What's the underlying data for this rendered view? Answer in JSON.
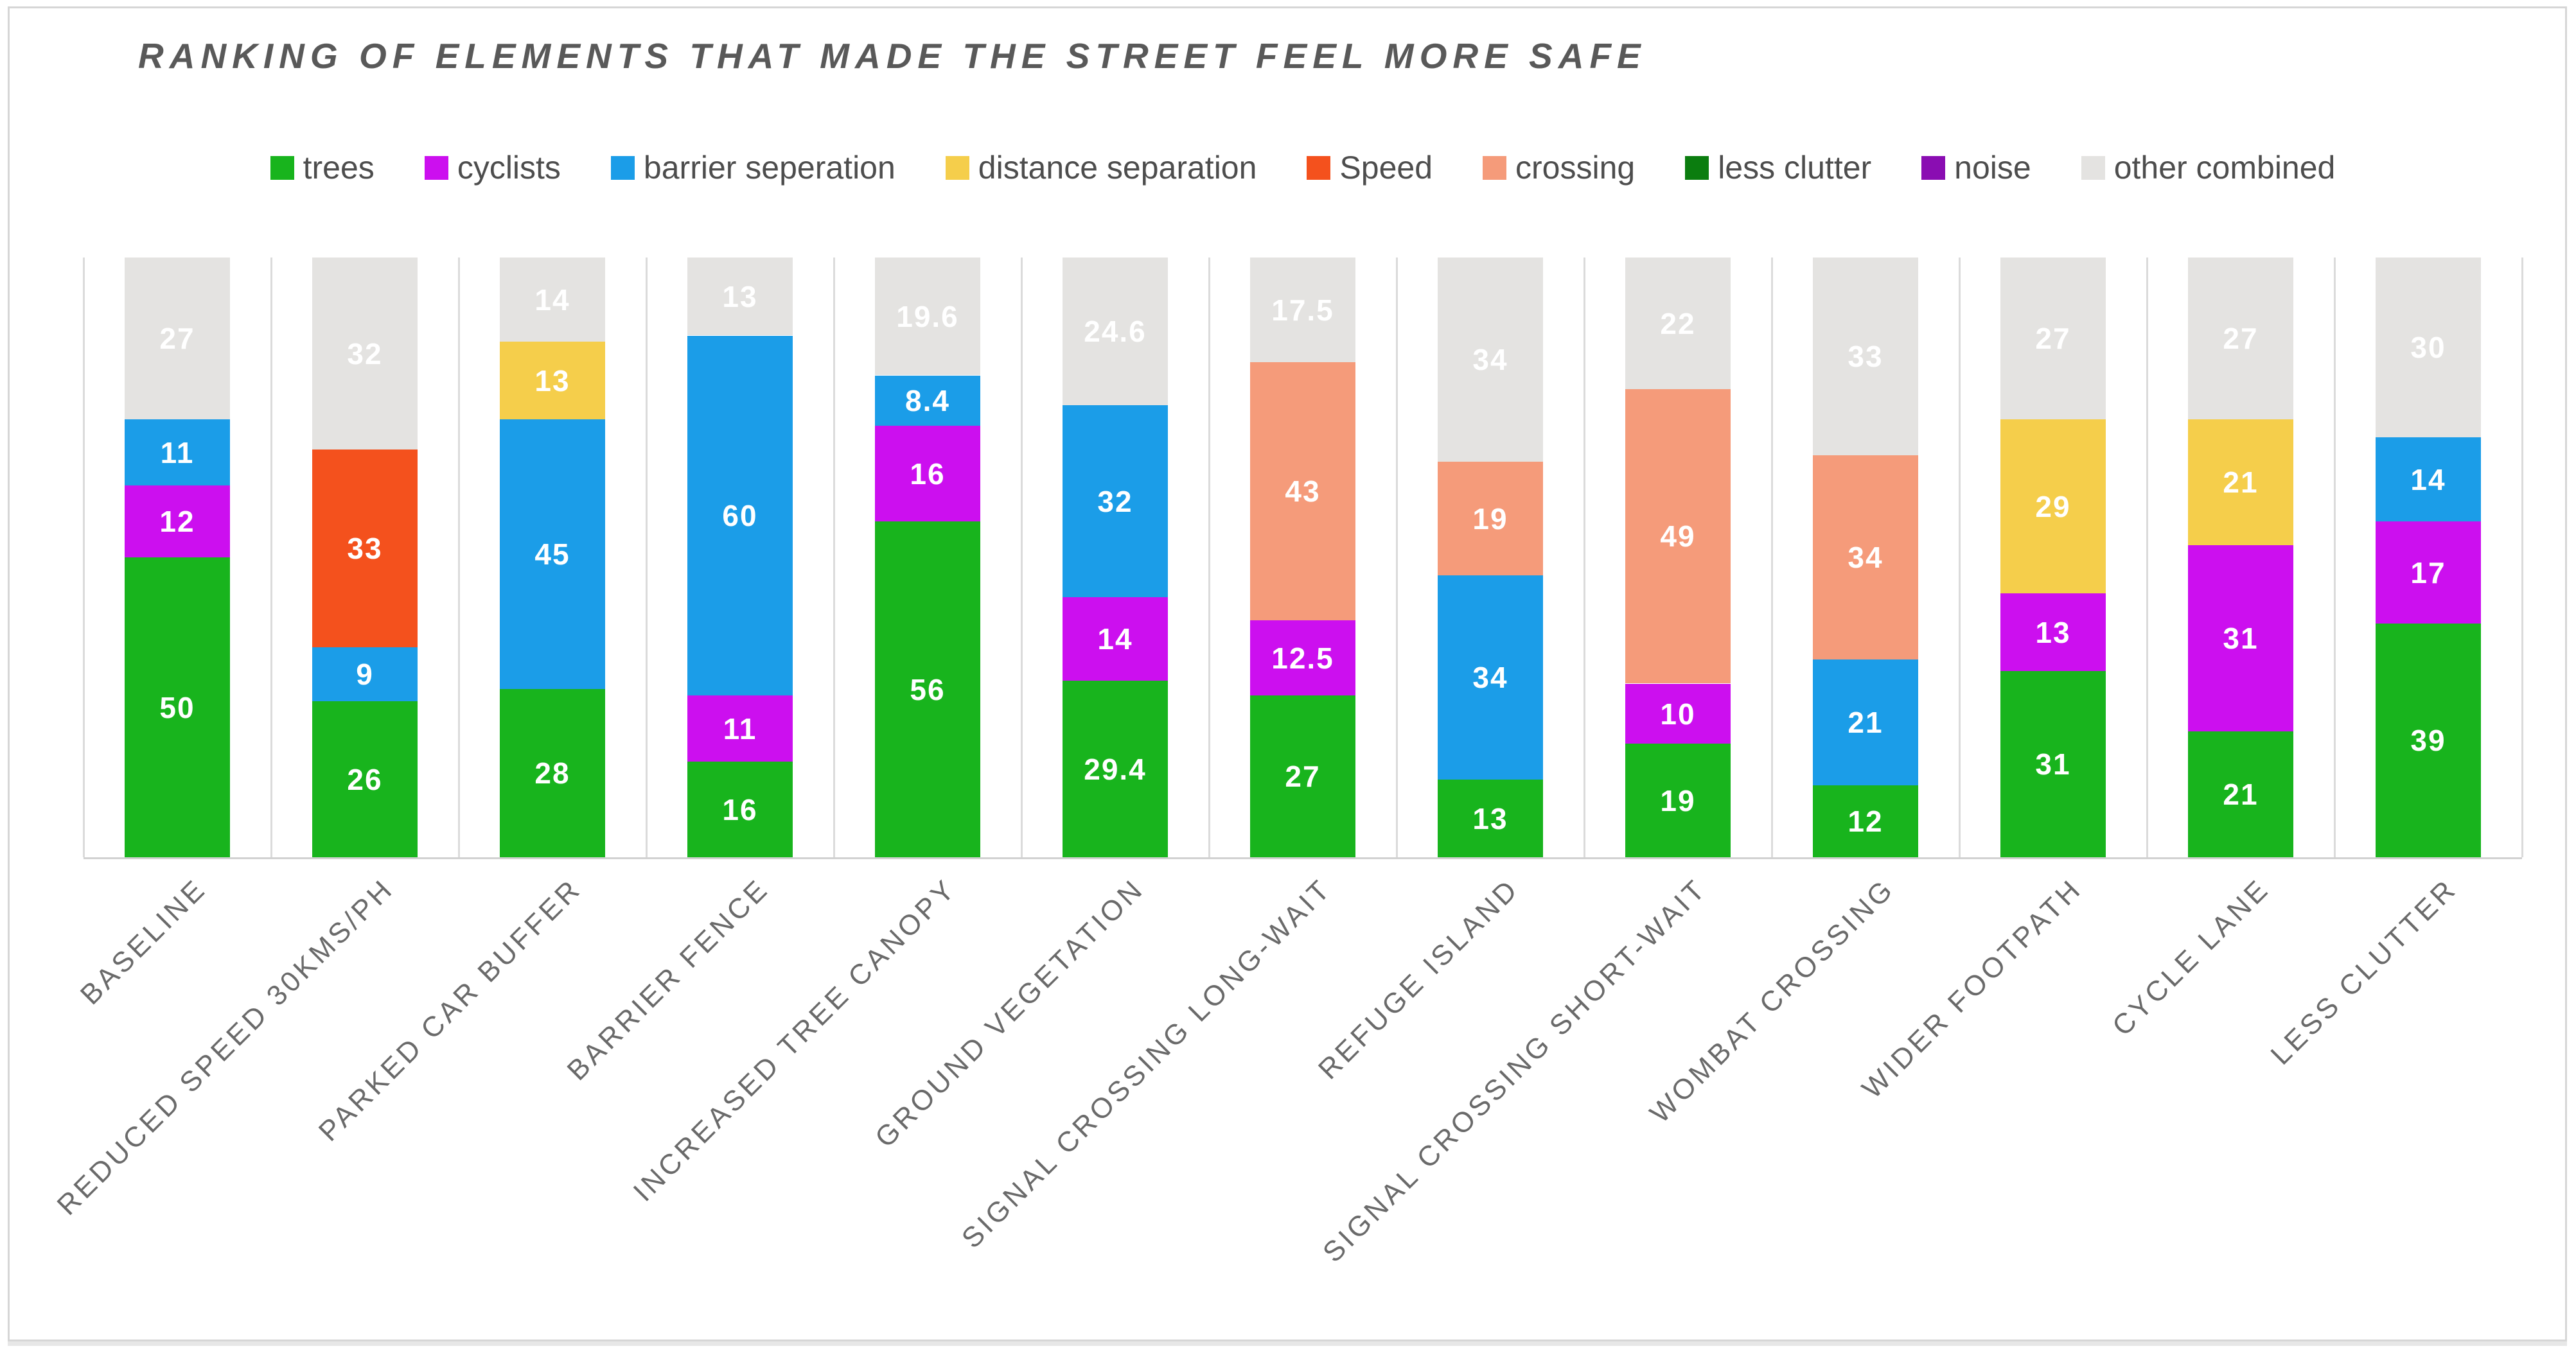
{
  "title": "RANKING OF ELEMENTS THAT MADE THE STREET FEEL MORE SAFE",
  "accent_colors": {
    "title_text": "#595959",
    "legend_text": "#4d4d4d",
    "axis_label_text": "#6a6a6a",
    "gridline": "#dbdbdb",
    "axis_line": "#d2d2d2",
    "value_label_text": "#ffffff"
  },
  "legend": [
    {
      "label": "trees",
      "color": "#18b41d"
    },
    {
      "label": "cyclists",
      "color": "#cc0fef"
    },
    {
      "label": "barrier seperation",
      "color": "#1b9de8"
    },
    {
      "label": "distance separation",
      "color": "#f5ce4b"
    },
    {
      "label": "Speed",
      "color": "#f4511d"
    },
    {
      "label": "crossing",
      "color": "#f59b7a"
    },
    {
      "label": "less clutter",
      "color": "#0b7d0f"
    },
    {
      "label": "noise",
      "color": "#8a0db2"
    },
    {
      "label": "other combined",
      "color": "#e4e3e1"
    }
  ],
  "chart_data": {
    "type": "bar",
    "stacked": true,
    "title": "RANKING OF ELEMENTS THAT MADE THE STREET FEEL MORE SAFE",
    "xlabel": "",
    "ylabel": "",
    "ylim": [
      0,
      100
    ],
    "grid": "vertical category separators only",
    "legend_position": "top",
    "value_labels": "white, centered in each segment",
    "categories": [
      "BASELINE",
      "REDUCED SPEED 30KMS/PH",
      "PARKED CAR BUFFER",
      "BARRIER FENCE",
      "INCREASED TREE CANOPY",
      "GROUND VEGETATION",
      "SIGNAL CROSSING LONG-WAIT",
      "REFUGE ISLAND",
      "SIGNAL CROSSING SHORT-WAIT",
      "WOMBAT CROSSING",
      "WIDER FOOTPATH",
      "CYCLE LANE",
      "LESS CLUTTER"
    ],
    "series": [
      {
        "name": "trees",
        "color": "#18b41d",
        "values": [
          50,
          26,
          28,
          16,
          56,
          29.4,
          27,
          13,
          19,
          12,
          31,
          21,
          39
        ]
      },
      {
        "name": "cyclists",
        "color": "#cc0fef",
        "values": [
          12,
          0,
          0,
          11,
          16,
          14,
          12.5,
          0,
          10,
          0,
          13,
          31,
          17
        ]
      },
      {
        "name": "barrier seperation",
        "color": "#1b9de8",
        "values": [
          11,
          9,
          45,
          60,
          8.4,
          32,
          0,
          34,
          0,
          21,
          0,
          0,
          14
        ]
      },
      {
        "name": "distance separation",
        "color": "#f5ce4b",
        "values": [
          0,
          0,
          13,
          0,
          0,
          0,
          0,
          0,
          0,
          0,
          29,
          21,
          0
        ]
      },
      {
        "name": "Speed",
        "color": "#f4511d",
        "values": [
          0,
          33,
          0,
          0,
          0,
          0,
          0,
          0,
          0,
          0,
          0,
          0,
          0
        ]
      },
      {
        "name": "crossing",
        "color": "#f59b7a",
        "values": [
          0,
          0,
          0,
          0,
          0,
          0,
          43,
          19,
          49,
          34,
          0,
          0,
          0
        ]
      },
      {
        "name": "less clutter",
        "color": "#0b7d0f",
        "values": [
          0,
          0,
          0,
          0,
          0,
          0,
          0,
          0,
          0,
          0,
          0,
          0,
          0
        ]
      },
      {
        "name": "noise",
        "color": "#8a0db2",
        "values": [
          0,
          0,
          0,
          0,
          0,
          0,
          0,
          0,
          0,
          0,
          0,
          0,
          0
        ]
      },
      {
        "name": "other combined",
        "color": "#e4e3e1",
        "values": [
          27,
          32,
          14,
          13,
          19.6,
          24.6,
          17.5,
          34,
          22,
          33,
          27,
          27,
          30
        ]
      }
    ]
  }
}
